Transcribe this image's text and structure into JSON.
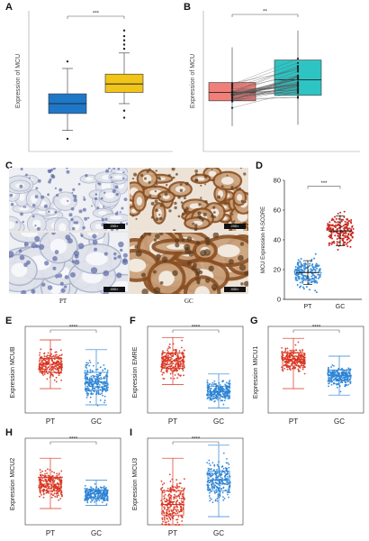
{
  "labels": {
    "A": "A",
    "B": "B",
    "C": "C",
    "D": "D",
    "E": "E",
    "F": "F",
    "G": "G",
    "H": "H",
    "I": "I"
  },
  "micro": {
    "scale_top": "200×",
    "scale_bottom": "400×",
    "pt": "PT",
    "gc": "GC"
  },
  "colors": {
    "pt_box": "#1f77c8",
    "gc_box": "#f0c419",
    "pt_paired": "#f07f7a",
    "gc_paired": "#2ec4c4",
    "pt_dot": "#d8321e",
    "gc_dot": "#2a82d4",
    "d_pt": "#3b8fd8",
    "d_gc": "#c8281e"
  },
  "chart_data": [
    {
      "id": "A",
      "type": "box",
      "ylabel": "Expression of MCU",
      "categories": [
        "",
        ""
      ],
      "sig": "***",
      "ylim": [
        0,
        10
      ],
      "boxes": [
        {
          "q1": 2.7,
          "median": 3.4,
          "q3": 4.1,
          "lo": 1.5,
          "hi": 5.9,
          "outliers": [
            6.4,
            0.9
          ]
        },
        {
          "q1": 4.2,
          "median": 4.8,
          "q3": 5.5,
          "lo": 3.4,
          "hi": 7.0,
          "outliers": [
            7.3,
            7.6,
            7.9,
            8.2,
            8.6,
            2.9,
            2.4
          ]
        }
      ]
    },
    {
      "id": "B",
      "type": "paired-box",
      "ylabel": "Expression of MCU",
      "categories": [
        "",
        ""
      ],
      "sig": "**",
      "ylim": [
        0,
        10
      ],
      "boxes": [
        {
          "q1": 3.6,
          "median": 4.2,
          "q3": 4.9,
          "lo": 1.8,
          "hi": 7.4
        },
        {
          "q1": 4.0,
          "median": 5.1,
          "q3": 6.5,
          "lo": 1.9,
          "hi": 8.6
        }
      ]
    },
    {
      "id": "D",
      "type": "scatter",
      "ylabel": "MCU Expression H-SCORE",
      "categories": [
        "PT",
        "GC"
      ],
      "yticks": [
        0,
        20,
        40,
        60,
        80
      ],
      "ylim": [
        0,
        80
      ],
      "sig": "***",
      "groups": [
        {
          "name": "PT",
          "mean": 18,
          "sd": 9,
          "min": 1,
          "max": 42,
          "n": 200,
          "sdbar": [
            10,
            26
          ]
        },
        {
          "name": "GC",
          "mean": 46,
          "sd": 11,
          "min": 15,
          "max": 72,
          "n": 200,
          "sdbar": [
            36,
            56
          ]
        }
      ]
    },
    {
      "id": "E",
      "type": "jitter-box",
      "ylabel": "Expression MCUB",
      "categories": [
        "PT",
        "GC"
      ],
      "sig": "****",
      "groups": [
        {
          "q1": 0.5,
          "median": 0.6,
          "q3": 0.67,
          "lo": 0.3,
          "hi": 0.9,
          "min": 0.15,
          "max": 0.98
        },
        {
          "q1": 0.28,
          "median": 0.38,
          "q3": 0.5,
          "lo": 0.1,
          "hi": 0.78,
          "min": 0.02,
          "max": 0.8
        }
      ]
    },
    {
      "id": "F",
      "type": "jitter-box",
      "ylabel": "Expression EMRE",
      "categories": [
        "PT",
        "GC"
      ],
      "sig": "****",
      "groups": [
        {
          "q1": 0.55,
          "median": 0.64,
          "q3": 0.74,
          "lo": 0.35,
          "hi": 0.93,
          "min": 0.3,
          "max": 0.98
        },
        {
          "q1": 0.2,
          "median": 0.26,
          "q3": 0.33,
          "lo": 0.06,
          "hi": 0.48,
          "min": 0.03,
          "max": 0.5
        }
      ]
    },
    {
      "id": "G",
      "type": "jitter-box",
      "ylabel": "Expression MICU1",
      "categories": [
        "PT",
        "GC"
      ],
      "sig": "****",
      "groups": [
        {
          "q1": 0.58,
          "median": 0.66,
          "q3": 0.74,
          "lo": 0.3,
          "hi": 0.92,
          "min": 0.08,
          "max": 0.98
        },
        {
          "q1": 0.4,
          "median": 0.46,
          "q3": 0.53,
          "lo": 0.22,
          "hi": 0.7,
          "min": 0.18,
          "max": 0.75
        }
      ]
    },
    {
      "id": "H",
      "type": "jitter-box",
      "ylabel": "Expression MICU2",
      "categories": [
        "PT",
        "GC"
      ],
      "sig": "****",
      "groups": [
        {
          "q1": 0.42,
          "median": 0.5,
          "q3": 0.58,
          "lo": 0.2,
          "hi": 0.82,
          "min": 0.1,
          "max": 0.95
        },
        {
          "q1": 0.33,
          "median": 0.38,
          "q3": 0.43,
          "lo": 0.24,
          "hi": 0.55,
          "min": 0.2,
          "max": 0.58
        }
      ]
    },
    {
      "id": "I",
      "type": "jitter-box",
      "ylabel": "Expression MICU3",
      "categories": [
        "PT",
        "GC"
      ],
      "sig": "****",
      "groups": [
        {
          "q1": 0.12,
          "median": 0.25,
          "q3": 0.42,
          "lo": 0.0,
          "hi": 0.82,
          "min": 0.0,
          "max": 0.9
        },
        {
          "q1": 0.42,
          "median": 0.55,
          "q3": 0.66,
          "lo": 0.1,
          "hi": 0.98,
          "min": 0.05,
          "max": 1.0
        }
      ]
    }
  ]
}
